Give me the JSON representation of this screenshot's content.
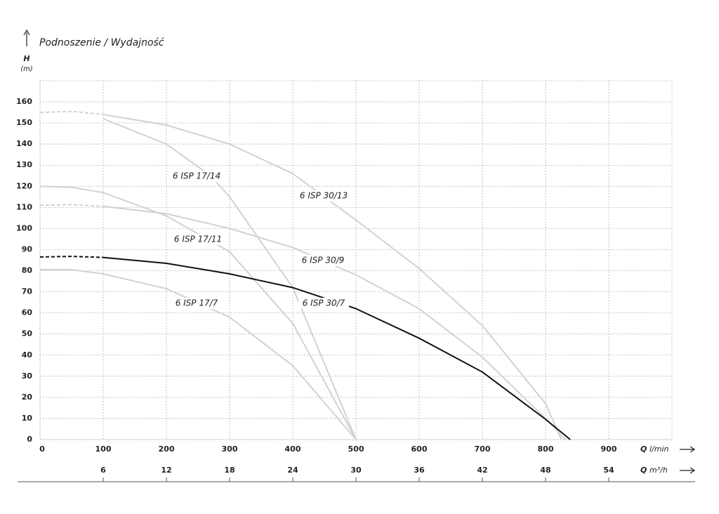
{
  "chart_data": {
    "type": "line",
    "title": "Podnoszenie / Wydajność",
    "y_label": "H",
    "y_unit": "(m)",
    "x_label": "Q",
    "x_unit": "l/min",
    "x2_label": "Q",
    "x2_unit": "m³/h",
    "xlim": [
      0,
      1000
    ],
    "xticks": [
      0,
      100,
      200,
      300,
      400,
      500,
      600,
      700,
      800,
      900
    ],
    "x2lim": [
      0,
      60
    ],
    "x2ticks": [
      6,
      12,
      18,
      24,
      30,
      36,
      42,
      48,
      54
    ],
    "ylim": [
      0,
      170
    ],
    "yticks": [
      0,
      10,
      20,
      30,
      40,
      50,
      60,
      70,
      80,
      90,
      100,
      110,
      120,
      130,
      140,
      150,
      160
    ],
    "grid": true,
    "series": [
      {
        "name": "6 ISP 17/7",
        "color": "#d2d2d2",
        "x": [
          0,
          50,
          100,
          200,
          300,
          400,
          500
        ],
        "values": [
          80.5,
          80.5,
          78.5,
          71.5,
          58,
          35,
          0
        ]
      },
      {
        "name": "6 ISP 17/11",
        "color": "#d2d2d2",
        "x": [
          0,
          50,
          100,
          200,
          300,
          400,
          500
        ],
        "values": [
          120,
          119.5,
          117,
          106,
          89,
          55,
          0
        ]
      },
      {
        "name": "6 ISP 17/14",
        "color": "#d2d2d2",
        "x": [
          100,
          200,
          270,
          300,
          400,
          500
        ],
        "values": [
          152,
          140,
          125,
          115,
          72,
          0
        ]
      },
      {
        "name": "6 ISP 30/13",
        "color": "#d2d2d2",
        "dashed_x": [
          0,
          50,
          100
        ],
        "dashed_values": [
          155,
          155.5,
          154
        ],
        "x": [
          100,
          200,
          300,
          400,
          500,
          600,
          700,
          800,
          825
        ],
        "values": [
          154,
          149,
          140,
          126,
          104,
          81,
          54,
          17,
          0
        ]
      },
      {
        "name": "6 ISP 30/9",
        "color": "#d2d2d2",
        "dashed_x": [
          0,
          50,
          100
        ],
        "dashed_values": [
          111,
          111.3,
          110.5
        ],
        "x": [
          100,
          200,
          300,
          400,
          500,
          600,
          700,
          800,
          831
        ],
        "values": [
          110.5,
          107,
          100,
          91,
          78,
          62,
          39,
          10,
          0
        ]
      },
      {
        "name": "6 ISP 30/7",
        "color": "#111111",
        "dashed_x": [
          0,
          50,
          100
        ],
        "dashed_values": [
          86.5,
          86.8,
          86.3
        ],
        "x": [
          100,
          200,
          300,
          400,
          500,
          600,
          700,
          800,
          839
        ],
        "values": [
          86.3,
          83.5,
          78.5,
          72,
          62,
          48,
          32,
          9.6,
          0
        ]
      }
    ]
  }
}
